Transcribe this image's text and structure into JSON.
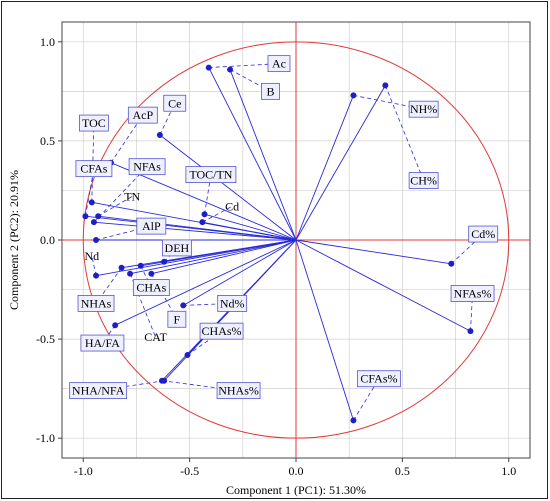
{
  "chart_data": {
    "type": "scatter",
    "subtype": "pca-biplot",
    "title": "",
    "xlabel": "Component 1 (PC1): 51.30%",
    "ylabel": "Component 2 (PC2): 20.91%",
    "xlim": [
      -1.1,
      1.1
    ],
    "ylim": [
      -1.1,
      1.1
    ],
    "xticks": [
      "-1.0",
      "-0.5",
      "0.0",
      "0.5",
      "1.0"
    ],
    "yticks": [
      "1.0",
      "0.5",
      "0.0",
      "-0.5",
      "-1.0"
    ],
    "grid": true,
    "reference_circle_radius": 1.0,
    "colors": {
      "vector": "#2a2ad8",
      "point": "#1f1fc8",
      "circle": "#e23a3a",
      "zero_lines": "#e23a3a",
      "grid": "#d0d0d0",
      "label_box_fill": "#eef0ff",
      "label_box_stroke": "#5555cc",
      "leader_line": "#2a2ad8"
    },
    "variables": [
      {
        "name": "Ac",
        "x": -0.41,
        "y": 0.87,
        "lx": -0.08,
        "ly": 0.89,
        "box": true
      },
      {
        "name": "B",
        "x": -0.31,
        "y": 0.86,
        "lx": -0.12,
        "ly": 0.75,
        "box": true
      },
      {
        "name": "Ce",
        "x": -0.64,
        "y": 0.53,
        "lx": -0.57,
        "ly": 0.69,
        "box": true
      },
      {
        "name": "AcP",
        "x": -0.87,
        "y": 0.39,
        "lx": -0.72,
        "ly": 0.63,
        "box": true
      },
      {
        "name": "TOC",
        "x": -0.96,
        "y": 0.19,
        "lx": -0.95,
        "ly": 0.59,
        "box": true
      },
      {
        "name": "CFAs",
        "x": -0.99,
        "y": 0.12,
        "lx": -0.95,
        "ly": 0.36,
        "box": true
      },
      {
        "name": "NFAs",
        "x": -0.95,
        "y": 0.09,
        "lx": -0.7,
        "ly": 0.37,
        "box": true
      },
      {
        "name": "TOC/TN",
        "x": -0.43,
        "y": 0.13,
        "lx": -0.4,
        "ly": 0.33,
        "box": true
      },
      {
        "name": "TN",
        "x": -0.93,
        "y": 0.12,
        "lx": -0.77,
        "ly": 0.22,
        "box": false
      },
      {
        "name": "Cd",
        "x": -0.44,
        "y": 0.09,
        "lx": -0.3,
        "ly": 0.17,
        "box": false
      },
      {
        "name": "AlP",
        "x": -0.94,
        "y": 0.0,
        "lx": -0.68,
        "ly": 0.07,
        "box": true
      },
      {
        "name": "DEH",
        "x": -0.62,
        "y": -0.11,
        "lx": -0.56,
        "ly": -0.04,
        "box": true
      },
      {
        "name": "Nd",
        "x": -0.94,
        "y": -0.18,
        "lx": -0.96,
        "ly": -0.08,
        "box": false
      },
      {
        "name": "CHAs",
        "x": -0.73,
        "y": -0.13,
        "lx": -0.68,
        "ly": -0.24,
        "box": true
      },
      {
        "name": "NHAs",
        "x": -0.82,
        "y": -0.14,
        "lx": -0.94,
        "ly": -0.32,
        "box": true
      },
      {
        "name": "F",
        "x": -0.68,
        "y": -0.17,
        "lx": -0.56,
        "ly": -0.4,
        "box": true
      },
      {
        "name": "CAT",
        "x": -0.78,
        "y": -0.17,
        "lx": -0.66,
        "ly": -0.49,
        "box": false
      },
      {
        "name": "HA/FA",
        "x": -0.85,
        "y": -0.43,
        "lx": -0.91,
        "ly": -0.52,
        "box": true
      },
      {
        "name": "NHA/NFA",
        "x": -0.62,
        "y": -0.71,
        "lx": -0.93,
        "ly": -0.76,
        "box": true
      },
      {
        "name": "Nd%",
        "x": -0.53,
        "y": -0.33,
        "lx": -0.3,
        "ly": -0.32,
        "box": true
      },
      {
        "name": "CHAs%",
        "x": -0.51,
        "y": -0.58,
        "lx": -0.35,
        "ly": -0.46,
        "box": true
      },
      {
        "name": "NHAs%",
        "x": -0.63,
        "y": -0.71,
        "lx": -0.27,
        "ly": -0.76,
        "box": true
      },
      {
        "name": "NH%",
        "x": 0.27,
        "y": 0.73,
        "lx": 0.6,
        "ly": 0.66,
        "box": true
      },
      {
        "name": "CH%",
        "x": 0.42,
        "y": 0.78,
        "lx": 0.6,
        "ly": 0.3,
        "box": true
      },
      {
        "name": "Cd%",
        "x": 0.73,
        "y": -0.12,
        "lx": 0.88,
        "ly": 0.03,
        "box": true
      },
      {
        "name": "NFAs%",
        "x": 0.82,
        "y": -0.46,
        "lx": 0.83,
        "ly": -0.27,
        "box": true
      },
      {
        "name": "CFAs%",
        "x": 0.27,
        "y": -0.91,
        "lx": 0.39,
        "ly": -0.7,
        "box": true
      }
    ]
  }
}
